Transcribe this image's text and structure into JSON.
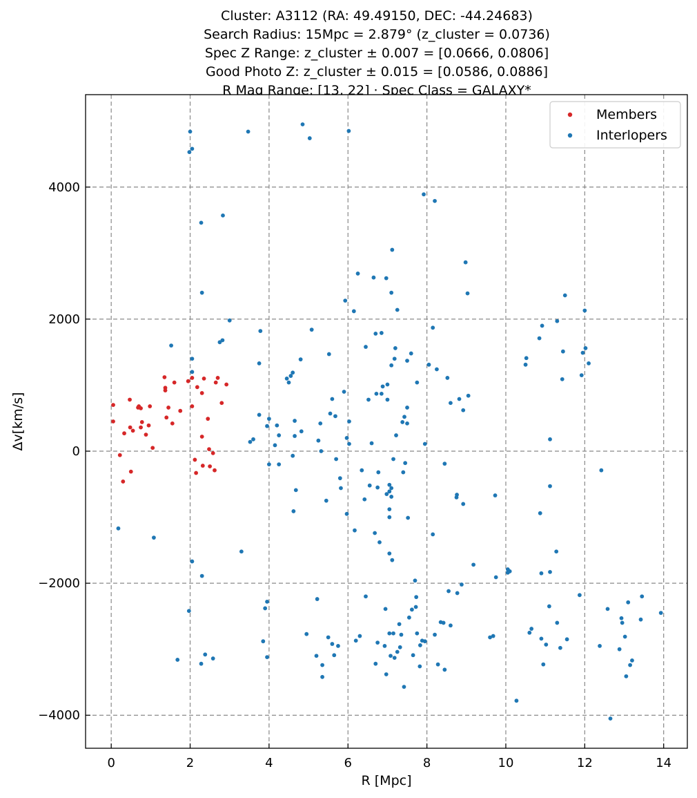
{
  "chart_data": {
    "type": "scatter",
    "title_lines": [
      "Cluster: A3112 (RA: 49.49150, DEC: -44.24683)",
      "Search Radius: 15Mpc = 2.879° (z_cluster = 0.0736)",
      "Spec Z Range: z_cluster ± 0.007 = [0.0666, 0.0806]",
      "Good Photo Z: z_cluster ± 0.015 = [0.0586, 0.0886]",
      "R Mag Range: [13, 22] · Spec Class = GALAXY*"
    ],
    "xlabel": "R [Mpc]",
    "ylabel": "Δv[km/s]",
    "xlim": [
      -0.65,
      14.6
    ],
    "ylim": [
      -4500,
      5400
    ],
    "xticks": [
      0,
      2,
      4,
      6,
      8,
      10,
      12,
      14
    ],
    "yticks": [
      -4000,
      -2000,
      0,
      2000,
      4000
    ],
    "xtick_labels": [
      "0",
      "2",
      "4",
      "6",
      "8",
      "10",
      "12",
      "14"
    ],
    "ytick_labels": [
      "−4000",
      "−2000",
      "0",
      "2000",
      "4000"
    ],
    "grid": true,
    "legend_position": "top-right",
    "series": [
      {
        "name": "Members",
        "color": "#d62728",
        "points": [
          [
            0.05,
            700
          ],
          [
            0.05,
            450
          ],
          [
            0.22,
            -60
          ],
          [
            0.33,
            270
          ],
          [
            0.47,
            780
          ],
          [
            0.48,
            360
          ],
          [
            0.55,
            310
          ],
          [
            0.7,
            680
          ],
          [
            0.75,
            650
          ],
          [
            0.78,
            440
          ],
          [
            0.75,
            360
          ],
          [
            0.88,
            250
          ],
          [
            0.95,
            390
          ],
          [
            0.98,
            680
          ],
          [
            1.05,
            50
          ],
          [
            0.3,
            -460
          ],
          [
            0.5,
            -310
          ],
          [
            1.35,
            1120
          ],
          [
            1.37,
            960
          ],
          [
            1.4,
            510
          ],
          [
            1.45,
            660
          ],
          [
            1.55,
            420
          ],
          [
            1.6,
            1040
          ],
          [
            1.75,
            610
          ],
          [
            1.95,
            1060
          ],
          [
            2.05,
            680
          ],
          [
            2.12,
            -130
          ],
          [
            2.15,
            -330
          ],
          [
            2.18,
            970
          ],
          [
            2.3,
            880
          ],
          [
            2.32,
            -220
          ],
          [
            2.45,
            490
          ],
          [
            2.48,
            30
          ],
          [
            2.5,
            -230
          ],
          [
            2.58,
            -30
          ],
          [
            2.62,
            -290
          ],
          [
            2.65,
            1040
          ],
          [
            2.7,
            1110
          ],
          [
            2.8,
            730
          ],
          [
            2.92,
            1010
          ],
          [
            2.3,
            220
          ],
          [
            2.05,
            1110
          ],
          [
            2.35,
            1100
          ],
          [
            1.37,
            920
          ],
          [
            0.68,
            660
          ]
        ]
      },
      {
        "name": "Interlopers",
        "color": "#1f77b4",
        "points": [
          [
            0.18,
            -1170
          ],
          [
            1.08,
            -1310
          ],
          [
            1.52,
            1600
          ],
          [
            1.68,
            -3160
          ],
          [
            1.97,
            -2420
          ],
          [
            2.0,
            4840
          ],
          [
            1.98,
            4530
          ],
          [
            2.05,
            4580
          ],
          [
            2.05,
            1400
          ],
          [
            2.05,
            1200
          ],
          [
            2.05,
            -1670
          ],
          [
            2.28,
            3460
          ],
          [
            2.3,
            2400
          ],
          [
            2.3,
            -1890
          ],
          [
            2.28,
            -3220
          ],
          [
            2.38,
            -3080
          ],
          [
            2.58,
            -3140
          ],
          [
            2.75,
            1650
          ],
          [
            2.82,
            1680
          ],
          [
            2.83,
            3570
          ],
          [
            3.0,
            1980
          ],
          [
            3.3,
            -1520
          ],
          [
            3.47,
            4840
          ],
          [
            3.52,
            140
          ],
          [
            3.6,
            180
          ],
          [
            3.75,
            1330
          ],
          [
            3.75,
            550
          ],
          [
            3.78,
            1820
          ],
          [
            3.85,
            -2880
          ],
          [
            3.9,
            -2380
          ],
          [
            3.95,
            -2280
          ],
          [
            3.95,
            -3120
          ],
          [
            3.95,
            380
          ],
          [
            4.0,
            490
          ],
          [
            4.0,
            -200
          ],
          [
            4.15,
            90
          ],
          [
            4.2,
            390
          ],
          [
            4.25,
            240
          ],
          [
            4.25,
            -200
          ],
          [
            4.45,
            1100
          ],
          [
            4.5,
            1040
          ],
          [
            4.55,
            1140
          ],
          [
            4.6,
            1190
          ],
          [
            4.62,
            -910
          ],
          [
            4.65,
            460
          ],
          [
            4.65,
            230
          ],
          [
            4.6,
            -70
          ],
          [
            4.68,
            -590
          ],
          [
            4.8,
            1390
          ],
          [
            4.82,
            300
          ],
          [
            4.85,
            4950
          ],
          [
            4.95,
            -2770
          ],
          [
            5.03,
            4740
          ],
          [
            5.08,
            1840
          ],
          [
            5.2,
            -3100
          ],
          [
            5.22,
            -2240
          ],
          [
            5.25,
            160
          ],
          [
            5.3,
            420
          ],
          [
            5.32,
            0
          ],
          [
            5.35,
            -3240
          ],
          [
            5.35,
            -3420
          ],
          [
            5.45,
            -750
          ],
          [
            5.5,
            -2820
          ],
          [
            5.52,
            1470
          ],
          [
            5.55,
            570
          ],
          [
            5.6,
            790
          ],
          [
            5.6,
            -2920
          ],
          [
            5.65,
            -3090
          ],
          [
            5.68,
            530
          ],
          [
            5.7,
            -120
          ],
          [
            5.75,
            -2950
          ],
          [
            5.8,
            -410
          ],
          [
            5.82,
            -560
          ],
          [
            5.9,
            900
          ],
          [
            5.93,
            2280
          ],
          [
            5.97,
            200
          ],
          [
            5.97,
            -950
          ],
          [
            6.02,
            4850
          ],
          [
            6.03,
            450
          ],
          [
            6.03,
            110
          ],
          [
            6.15,
            2120
          ],
          [
            6.17,
            -1200
          ],
          [
            6.2,
            -2870
          ],
          [
            6.25,
            2690
          ],
          [
            6.3,
            -2800
          ],
          [
            6.35,
            -290
          ],
          [
            6.42,
            -730
          ],
          [
            6.45,
            1580
          ],
          [
            6.45,
            -2200
          ],
          [
            6.52,
            780
          ],
          [
            6.55,
            -520
          ],
          [
            6.6,
            120
          ],
          [
            6.65,
            2630
          ],
          [
            6.68,
            -1240
          ],
          [
            6.7,
            -3220
          ],
          [
            6.7,
            1780
          ],
          [
            6.72,
            870
          ],
          [
            6.75,
            -2900
          ],
          [
            6.75,
            -550
          ],
          [
            6.77,
            -320
          ],
          [
            6.8,
            -1380
          ],
          [
            6.85,
            1790
          ],
          [
            6.85,
            870
          ],
          [
            6.88,
            980
          ],
          [
            6.93,
            -2950
          ],
          [
            6.95,
            -2390
          ],
          [
            6.97,
            -3380
          ],
          [
            6.97,
            2620
          ],
          [
            6.98,
            -650
          ],
          [
            7.0,
            1010
          ],
          [
            7.0,
            780
          ],
          [
            7.05,
            -610
          ],
          [
            7.05,
            -880
          ],
          [
            7.05,
            -1000
          ],
          [
            7.05,
            -1550
          ],
          [
            7.05,
            -2760
          ],
          [
            7.05,
            -510
          ],
          [
            7.08,
            -3100
          ],
          [
            7.1,
            -560
          ],
          [
            7.1,
            -690
          ],
          [
            7.1,
            1300
          ],
          [
            7.1,
            2400
          ],
          [
            7.12,
            3050
          ],
          [
            7.12,
            -1650
          ],
          [
            7.15,
            -120
          ],
          [
            7.15,
            -2760
          ],
          [
            7.18,
            -3130
          ],
          [
            7.18,
            1400
          ],
          [
            7.2,
            1560
          ],
          [
            7.22,
            240
          ],
          [
            7.25,
            2140
          ],
          [
            7.25,
            -3040
          ],
          [
            7.3,
            -2620
          ],
          [
            7.32,
            -2970
          ],
          [
            7.35,
            -2780
          ],
          [
            7.38,
            440
          ],
          [
            7.4,
            -320
          ],
          [
            7.42,
            -3570
          ],
          [
            7.43,
            520
          ],
          [
            7.45,
            -180
          ],
          [
            7.5,
            1370
          ],
          [
            7.5,
            660
          ],
          [
            7.5,
            420
          ],
          [
            7.52,
            -1010
          ],
          [
            7.55,
            -2520
          ],
          [
            7.6,
            1480
          ],
          [
            7.62,
            -2400
          ],
          [
            7.65,
            -3090
          ],
          [
            7.7,
            -1960
          ],
          [
            7.72,
            -2360
          ],
          [
            7.73,
            -2210
          ],
          [
            7.75,
            1040
          ],
          [
            7.75,
            -2760
          ],
          [
            7.82,
            -3260
          ],
          [
            7.83,
            -2940
          ],
          [
            7.88,
            -2870
          ],
          [
            7.92,
            3890
          ],
          [
            7.95,
            -2880
          ],
          [
            7.95,
            110
          ],
          [
            8.05,
            1310
          ],
          [
            8.15,
            1870
          ],
          [
            8.15,
            -1260
          ],
          [
            8.2,
            -2780
          ],
          [
            8.2,
            3790
          ],
          [
            8.25,
            1240
          ],
          [
            8.28,
            -3230
          ],
          [
            8.35,
            -2590
          ],
          [
            8.42,
            -2600
          ],
          [
            8.45,
            -3310
          ],
          [
            8.45,
            -190
          ],
          [
            8.52,
            1110
          ],
          [
            8.55,
            -2120
          ],
          [
            8.6,
            730
          ],
          [
            8.6,
            -2640
          ],
          [
            8.75,
            -700
          ],
          [
            8.76,
            -660
          ],
          [
            8.77,
            -2150
          ],
          [
            8.82,
            790
          ],
          [
            8.88,
            -2020
          ],
          [
            8.92,
            620
          ],
          [
            8.92,
            -800
          ],
          [
            8.98,
            2860
          ],
          [
            9.03,
            2390
          ],
          [
            9.05,
            840
          ],
          [
            9.18,
            -1720
          ],
          [
            9.6,
            -2820
          ],
          [
            9.68,
            -2800
          ],
          [
            9.73,
            -670
          ],
          [
            9.75,
            -1910
          ],
          [
            10.05,
            -1840
          ],
          [
            10.05,
            -1790
          ],
          [
            10.1,
            -1820
          ],
          [
            10.27,
            -3780
          ],
          [
            10.5,
            1310
          ],
          [
            10.52,
            1410
          ],
          [
            10.6,
            -2750
          ],
          [
            10.65,
            -2690
          ],
          [
            10.85,
            1710
          ],
          [
            10.87,
            -940
          ],
          [
            10.9,
            -1850
          ],
          [
            10.9,
            -2840
          ],
          [
            10.92,
            1900
          ],
          [
            10.95,
            -3230
          ],
          [
            11.02,
            -2930
          ],
          [
            11.1,
            -2350
          ],
          [
            11.12,
            180
          ],
          [
            11.12,
            -530
          ],
          [
            11.12,
            -1830
          ],
          [
            11.28,
            -1520
          ],
          [
            11.3,
            1970
          ],
          [
            11.3,
            -2600
          ],
          [
            11.38,
            -2980
          ],
          [
            11.43,
            1090
          ],
          [
            11.45,
            1510
          ],
          [
            11.5,
            2360
          ],
          [
            11.55,
            -2850
          ],
          [
            11.87,
            -2180
          ],
          [
            11.92,
            1150
          ],
          [
            11.95,
            1490
          ],
          [
            12.0,
            2130
          ],
          [
            12.02,
            1560
          ],
          [
            12.1,
            1330
          ],
          [
            12.38,
            -2950
          ],
          [
            12.42,
            -290
          ],
          [
            12.58,
            -2390
          ],
          [
            12.65,
            -4050
          ],
          [
            12.88,
            -3000
          ],
          [
            12.93,
            -2530
          ],
          [
            12.95,
            -2600
          ],
          [
            13.02,
            -2810
          ],
          [
            13.05,
            -3410
          ],
          [
            13.1,
            -2290
          ],
          [
            13.15,
            -3240
          ],
          [
            13.2,
            -3170
          ],
          [
            13.42,
            -2550
          ],
          [
            13.45,
            -2200
          ],
          [
            13.93,
            -2450
          ]
        ]
      }
    ]
  }
}
